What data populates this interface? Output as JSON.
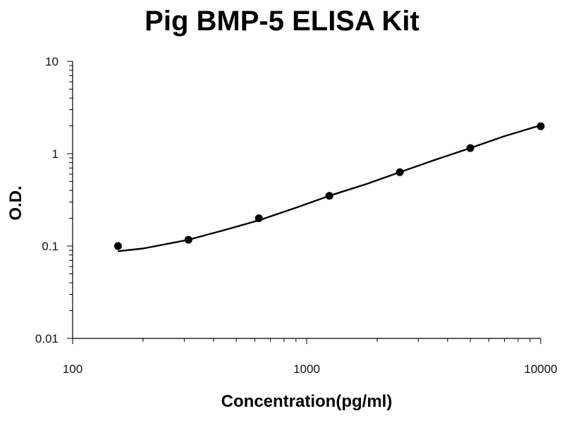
{
  "chart_data": {
    "type": "scatter",
    "title": "Pig BMP-5 ELISA Kit",
    "xlabel": "Concentration(pg/ml)",
    "ylabel": "O.D.",
    "xscale": "log",
    "yscale": "log",
    "xlim": [
      100,
      10000
    ],
    "ylim": [
      0.01,
      10
    ],
    "x_ticks": [
      "100",
      "1000",
      "10000"
    ],
    "y_ticks": [
      "10",
      "1",
      "0.1",
      "0.01"
    ],
    "grid": false,
    "legend": "none",
    "colors": {
      "points": "#000000",
      "line": "#000000",
      "axis": "#000000"
    },
    "series": [
      {
        "points": [
          {
            "x": 156.25,
            "y": 0.1
          },
          {
            "x": 312.5,
            "y": 0.117
          },
          {
            "x": 625,
            "y": 0.2
          },
          {
            "x": 1250,
            "y": 0.35
          },
          {
            "x": 2500,
            "y": 0.63
          },
          {
            "x": 5000,
            "y": 1.15
          },
          {
            "x": 10000,
            "y": 1.98
          }
        ],
        "fit_curve": [
          {
            "x": 156.25,
            "y": 0.088
          },
          {
            "x": 200,
            "y": 0.094
          },
          {
            "x": 312.5,
            "y": 0.117
          },
          {
            "x": 450,
            "y": 0.15
          },
          {
            "x": 625,
            "y": 0.19
          },
          {
            "x": 900,
            "y": 0.26
          },
          {
            "x": 1250,
            "y": 0.35
          },
          {
            "x": 1800,
            "y": 0.47
          },
          {
            "x": 2500,
            "y": 0.63
          },
          {
            "x": 3500,
            "y": 0.85
          },
          {
            "x": 5000,
            "y": 1.15
          },
          {
            "x": 7000,
            "y": 1.55
          },
          {
            "x": 10000,
            "y": 2.03
          }
        ]
      }
    ]
  }
}
